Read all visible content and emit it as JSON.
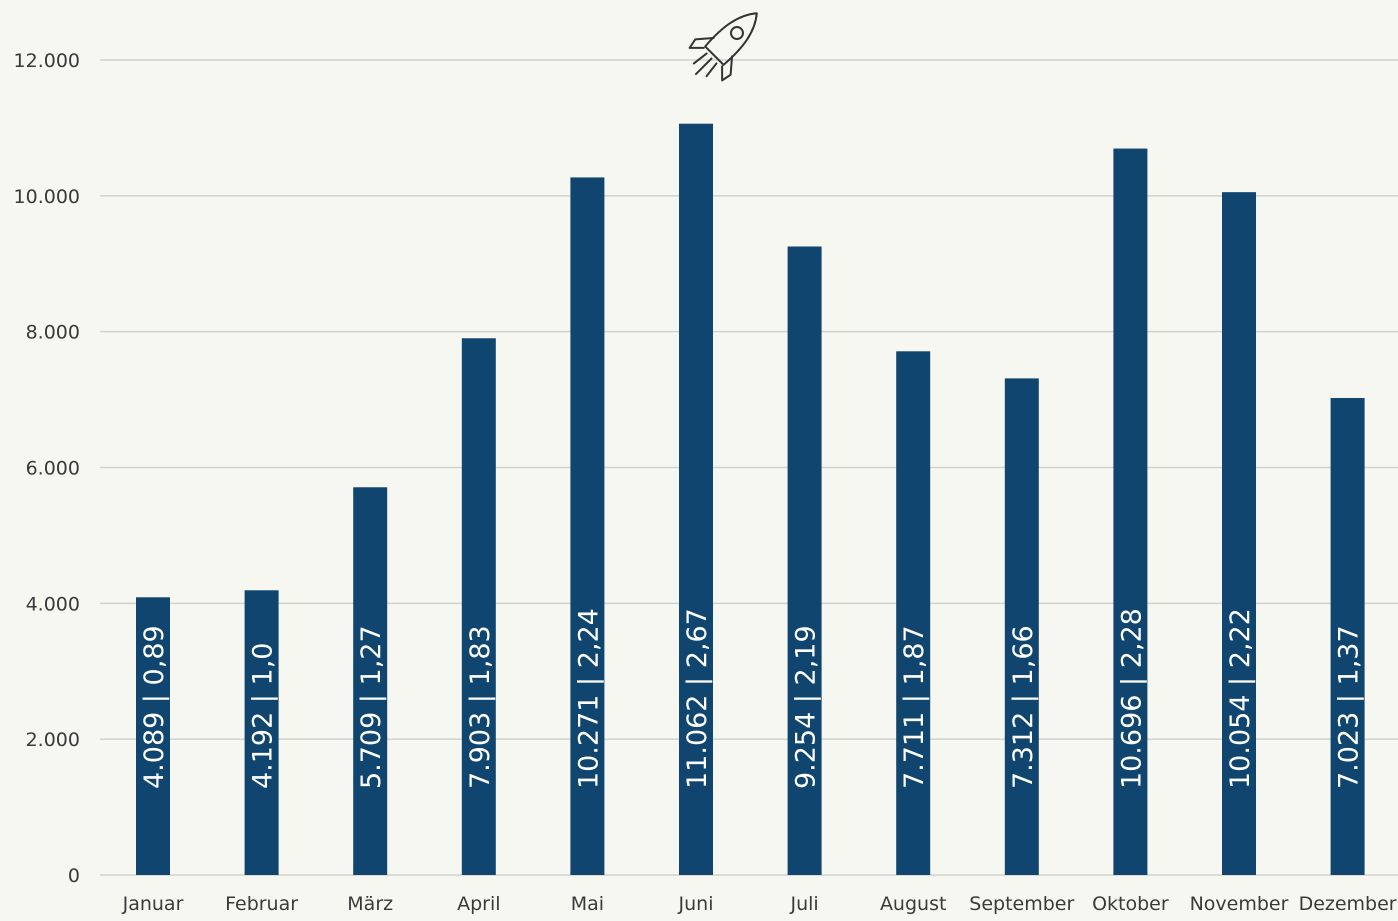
{
  "chart_data": {
    "type": "bar",
    "categories": [
      "Januar",
      "Februar",
      "März",
      "April",
      "Mai",
      "Juni",
      "Juli",
      "August",
      "September",
      "Oktober",
      "November",
      "Dezember"
    ],
    "values": [
      4089,
      4192,
      5709,
      7903,
      10271,
      11062,
      9254,
      7711,
      7312,
      10696,
      10054,
      7023
    ],
    "data_labels": [
      "4.089 | 0,89",
      "4.192 | 1,0",
      "5.709 | 1,27",
      "7.903 | 1,83",
      "10.271 | 2,24",
      "11.062 | 2,67",
      "9.254 | 2,19",
      "7.711 | 1,87",
      "7.312 | 1,66",
      "10.696 | 2,28",
      "10.054 | 2,22",
      "7.023 | 1,37"
    ],
    "title": "",
    "xlabel": "",
    "ylabel": "",
    "ylim": [
      0,
      12000
    ],
    "y_ticks": [
      0,
      2000,
      4000,
      6000,
      8000,
      10000,
      12000
    ],
    "y_tick_labels": [
      "0",
      "2.000",
      "4.000",
      "6.000",
      "8.000",
      "10.000",
      "12.000"
    ],
    "grid": true,
    "bar_color": "#0f456e",
    "annotation_icon": "rocket-icon",
    "annotation_icon_category": "Juni"
  }
}
